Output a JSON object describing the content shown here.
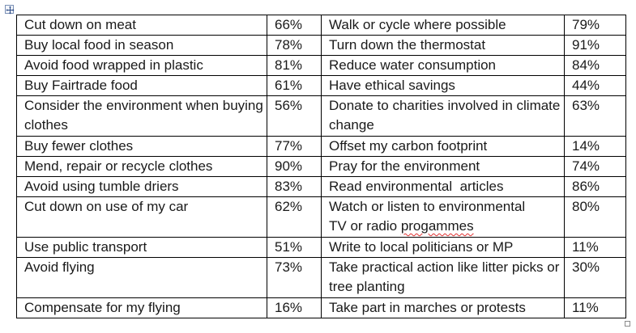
{
  "table": {
    "rows": [
      {
        "a_label": "Cut down on meat",
        "a_value": "66%",
        "b_label": "Walk or cycle where possible",
        "b_value": "79%"
      },
      {
        "a_label": "Buy local food in season",
        "a_value": "78%",
        "b_label": "Turn down the thermostat",
        "b_value": "91%"
      },
      {
        "a_label": "Avoid food wrapped in plastic",
        "a_value": "81%",
        "b_label": "Reduce water consumption",
        "b_value": "84%"
      },
      {
        "a_label": "Buy Fairtrade food",
        "a_value": "61%",
        "b_label": "Have ethical savings",
        "b_value": "44%"
      },
      {
        "a_label": "Consider the environment when buying clothes",
        "a_value": "56%",
        "b_label": "Donate to charities involved in climate change",
        "b_value": "63%"
      },
      {
        "a_label": "Buy fewer clothes",
        "a_value": "77%",
        "b_label": "Offset my carbon footprint",
        "b_value": "14%"
      },
      {
        "a_label": "Mend, repair or recycle clothes",
        "a_value": "90%",
        "b_label": "Pray for the environment",
        "b_value": "74%"
      },
      {
        "a_label": "Avoid using tumble driers",
        "a_value": "83%",
        "b_label": "Read environmental  articles",
        "b_value": "86%"
      },
      {
        "a_label": "Cut down on use of my car",
        "a_value": "62%",
        "b_label_line1": "Watch or listen to environmental",
        "b_label_line2_prefix": "TV or radio ",
        "b_label_line2_misspelled": "progammes",
        "b_value": "80%"
      },
      {
        "a_label": "Use public transport",
        "a_value": "51%",
        "b_label": "Write to local politicians or MP",
        "b_value": "11%"
      },
      {
        "a_label": "Avoid flying",
        "a_value": "73%",
        "b_label": "Take practical action like litter picks or tree planting",
        "b_value": "30%"
      },
      {
        "a_label": "Compensate for my flying",
        "a_value": "16%",
        "b_label": "Take part in marches or protests",
        "b_value": "11%"
      }
    ]
  }
}
